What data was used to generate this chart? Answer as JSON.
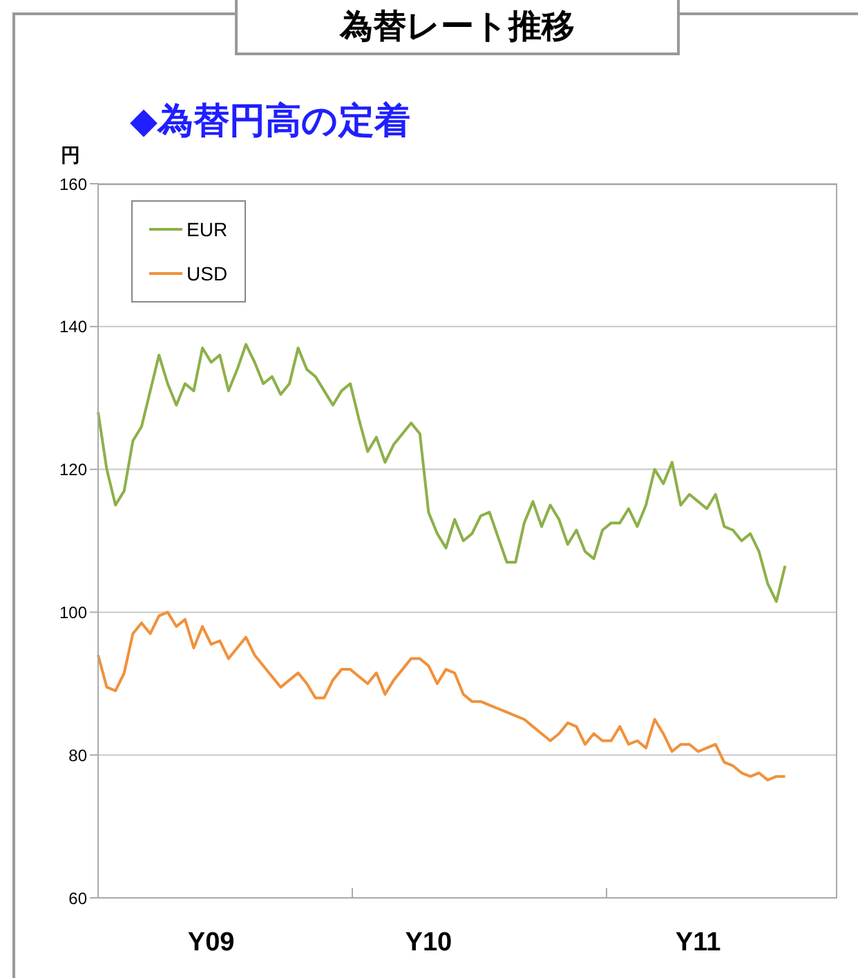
{
  "chart_data": {
    "type": "line",
    "title": "為替レート推移",
    "subtitle": "◆為替円高の定着",
    "ylabel": "円",
    "ylim": [
      60,
      160
    ],
    "yticks": [
      60,
      80,
      100,
      120,
      140,
      160
    ],
    "categories": [
      null,
      null,
      null,
      null,
      null,
      null,
      null,
      null,
      null,
      null,
      null,
      null,
      null,
      "Y09",
      null,
      null,
      null,
      null,
      null,
      null,
      null,
      null,
      null,
      null,
      null,
      null,
      null,
      null,
      null,
      null,
      null,
      null,
      null,
      null,
      null,
      null,
      null,
      null,
      "Y10",
      null,
      null,
      null,
      null,
      null,
      null,
      null,
      null,
      null,
      null,
      null,
      null,
      null,
      null,
      null,
      null,
      null,
      null,
      null,
      null,
      null,
      null,
      null,
      null,
      null,
      null,
      null,
      null,
      null,
      null,
      "Y11",
      null,
      null,
      null,
      null,
      null,
      null,
      null,
      null,
      null,
      null,
      null,
      null,
      null,
      null,
      null,
      null
    ],
    "grid": "y",
    "legend": "top left",
    "marker": "none",
    "line_style": "solid",
    "series": [
      {
        "name": "EUR",
        "color": "#8db04a",
        "values": [
          128,
          120,
          115,
          117,
          124,
          126,
          131,
          136,
          132,
          129,
          132,
          131,
          137,
          135,
          136,
          131,
          134,
          137.5,
          135,
          132,
          133,
          130.5,
          132,
          137,
          134,
          133,
          131,
          129,
          131,
          132,
          127,
          122.5,
          124.5,
          121,
          123.5,
          125,
          126.5,
          125,
          114,
          111,
          109,
          113,
          110,
          111,
          113.5,
          114,
          110.5,
          107,
          107,
          112.5,
          115.5,
          112,
          115,
          113,
          109.5,
          111.5,
          108.5,
          107.5,
          111.5,
          112.5,
          112.5,
          114.5,
          112,
          115,
          120,
          118,
          121,
          115,
          116.5,
          115.5,
          114.5,
          116.5,
          112,
          111.5,
          110,
          111,
          108.5,
          104,
          101.5,
          106.5,
          null,
          null,
          null,
          null,
          null,
          null
        ]
      },
      {
        "name": "USD",
        "color": "#f0913c",
        "values": [
          94,
          89.5,
          89,
          91.5,
          97,
          98.5,
          97,
          99.5,
          100,
          98,
          99,
          95,
          98,
          95.5,
          96,
          93.5,
          95,
          96.5,
          94,
          92.5,
          91,
          89.5,
          90.5,
          91.5,
          90,
          88,
          88,
          90.5,
          92,
          92,
          91,
          90,
          91.5,
          88.5,
          90.5,
          92,
          93.5,
          93.5,
          92.5,
          90,
          92,
          91.5,
          88.5,
          87.5,
          87.5,
          87,
          86.5,
          86,
          85.5,
          85,
          84,
          83,
          82,
          83,
          84.5,
          84,
          81.5,
          83,
          82,
          82,
          84,
          81.5,
          82,
          81,
          85,
          83,
          80.5,
          81.5,
          81.5,
          80.5,
          81,
          81.5,
          79,
          78.5,
          77.5,
          77,
          77.5,
          76.5,
          77,
          77,
          null,
          null,
          null,
          null,
          null,
          null
        ]
      }
    ]
  }
}
